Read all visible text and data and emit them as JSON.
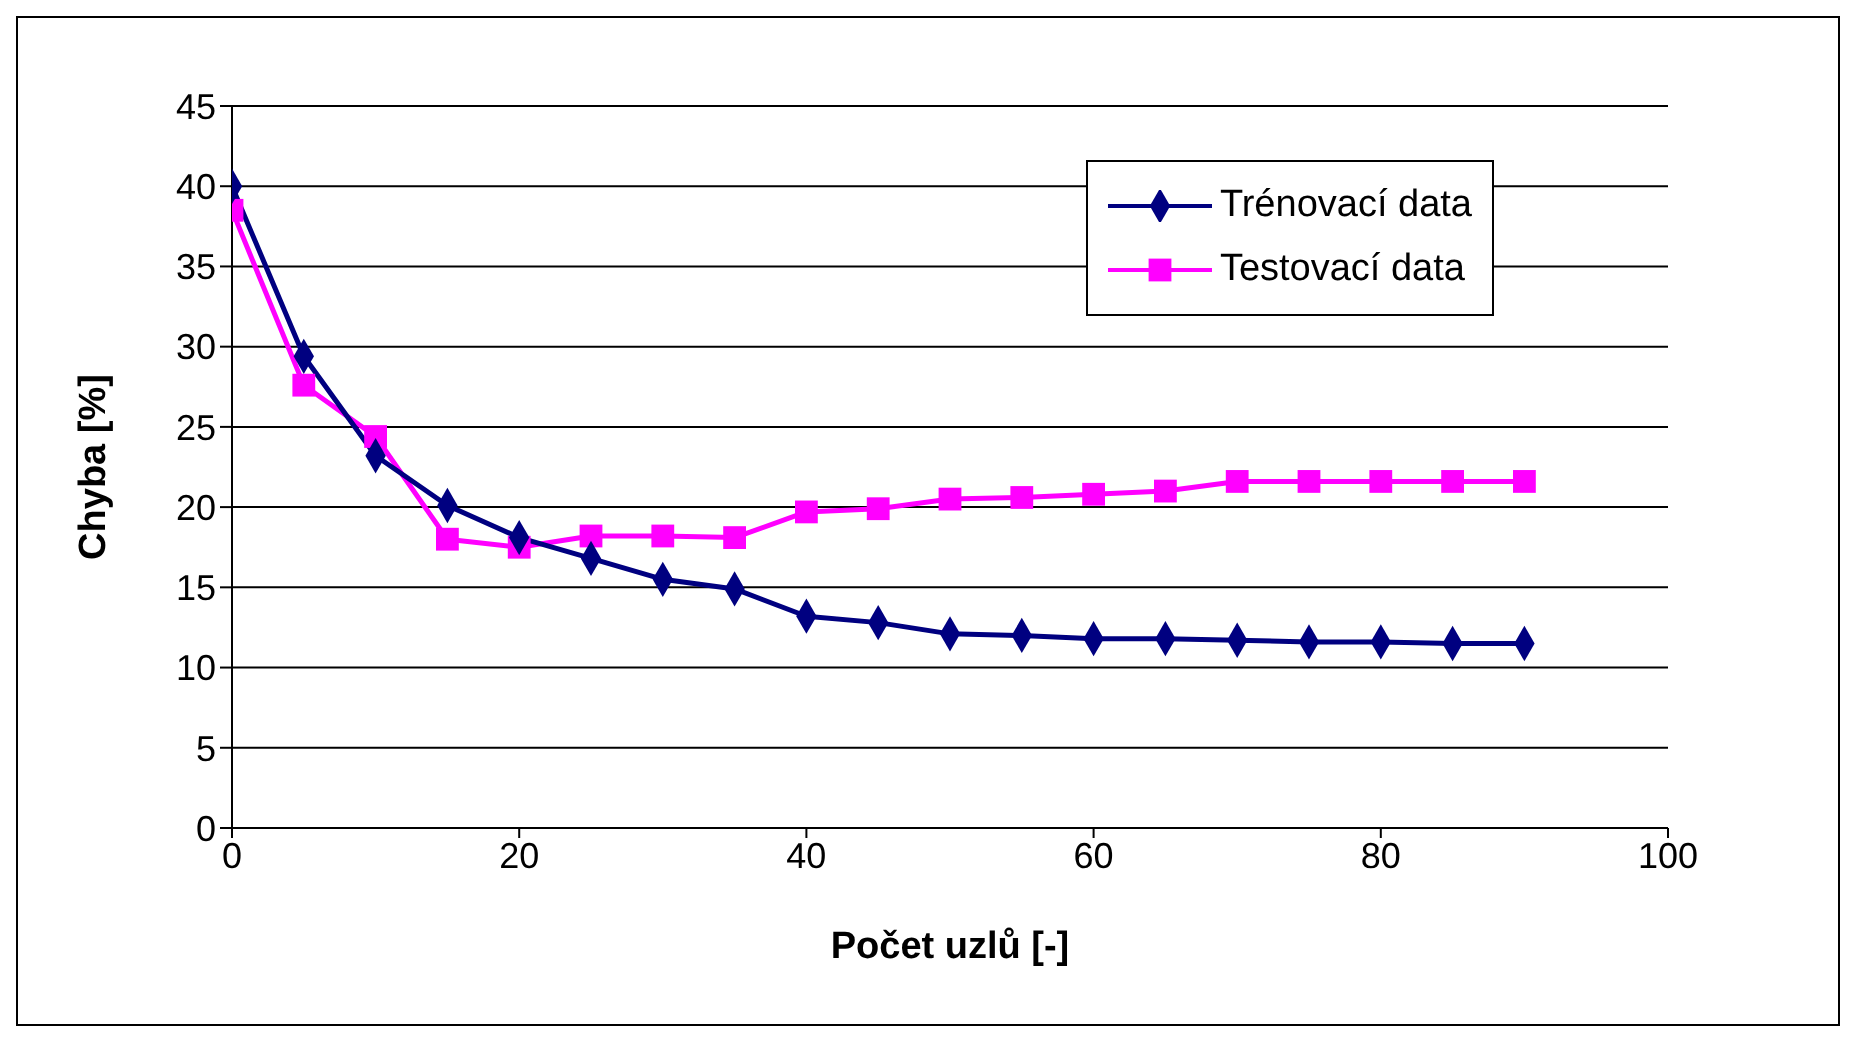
{
  "chart_data": {
    "type": "line",
    "xlabel": "Počet uzlů [-]",
    "ylabel": "Chyba [%]",
    "x": [
      0,
      5,
      10,
      15,
      20,
      25,
      30,
      35,
      40,
      45,
      50,
      55,
      60,
      65,
      70,
      75,
      80,
      85,
      90
    ],
    "series": [
      {
        "name": "Trénovací data",
        "color": "#000080",
        "marker": "diamond",
        "values": [
          40,
          29.4,
          23.2,
          20.1,
          18.1,
          16.8,
          15.5,
          14.9,
          13.2,
          12.8,
          12.1,
          12.0,
          11.8,
          11.8,
          11.7,
          11.6,
          11.6,
          11.5,
          11.5
        ]
      },
      {
        "name": "Testovací data",
        "color": "#ff00ff",
        "marker": "square",
        "values": [
          38.5,
          27.6,
          24.4,
          18.0,
          17.5,
          18.2,
          18.2,
          18.1,
          19.7,
          19.9,
          20.5,
          20.6,
          20.8,
          21.0,
          21.6,
          21.6,
          21.6,
          21.6,
          21.6
        ]
      }
    ],
    "xlim": [
      0,
      100
    ],
    "xticks": [
      0,
      20,
      40,
      60,
      80,
      100
    ],
    "ylim": [
      0,
      45
    ],
    "yticks": [
      0,
      5,
      10,
      15,
      20,
      25,
      30,
      35,
      40,
      45
    ],
    "grid": "y",
    "legend": "top right",
    "line_style": "solid"
  }
}
